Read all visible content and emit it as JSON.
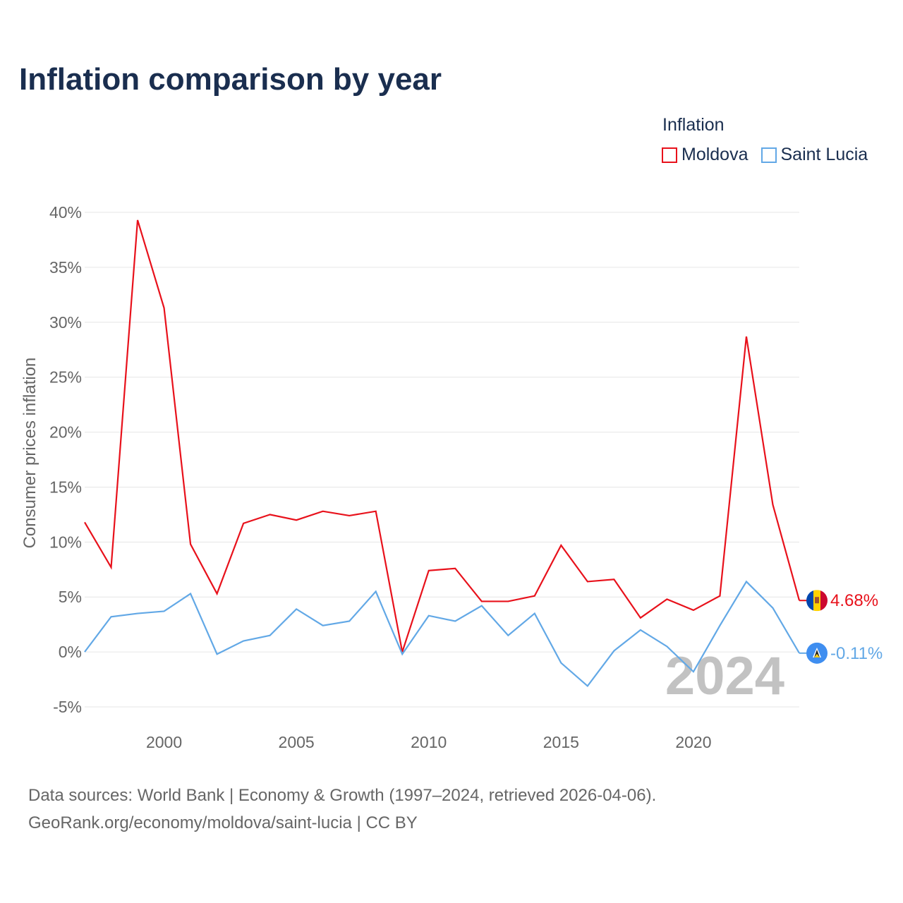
{
  "title": "Inflation comparison by year",
  "legend": {
    "title": "Inflation",
    "items": [
      {
        "label": "Moldova",
        "color": "#e8111b"
      },
      {
        "label": "Saint Lucia",
        "color": "#62a8e6"
      }
    ]
  },
  "source": {
    "line1": "Data sources: World Bank | Economy & Growth (1997–2024, retrieved 2026-04-06).",
    "line2": "GeoRank.org/economy/moldova/saint-lucia | CC BY"
  },
  "chart_data": {
    "type": "line",
    "title": "Inflation comparison by year",
    "xlabel": "",
    "ylabel": "Consumer prices inflation",
    "x": [
      1997,
      1998,
      1999,
      2000,
      2001,
      2002,
      2003,
      2004,
      2005,
      2006,
      2007,
      2008,
      2009,
      2010,
      2011,
      2012,
      2013,
      2014,
      2015,
      2016,
      2017,
      2018,
      2019,
      2020,
      2021,
      2022,
      2023,
      2024
    ],
    "xlim": [
      1997,
      2024
    ],
    "ylim": [
      -5,
      40
    ],
    "x_ticks": [
      "2000",
      "2005",
      "2010",
      "2015",
      "2020"
    ],
    "x_tick_values": [
      2000,
      2005,
      2010,
      2015,
      2020
    ],
    "y_ticks": [
      "40%",
      "35%",
      "30%",
      "25%",
      "20%",
      "15%",
      "10%",
      "5%",
      "0%",
      "-5%"
    ],
    "y_tick_values": [
      40,
      35,
      30,
      25,
      20,
      15,
      10,
      5,
      0,
      -5
    ],
    "grid": true,
    "year_watermark": "2024",
    "series": [
      {
        "name": "Moldova",
        "color": "#e8111b",
        "end_label": "4.68%",
        "flag": "moldova-flag-icon",
        "values": [
          11.8,
          7.7,
          39.3,
          31.3,
          9.8,
          5.3,
          11.7,
          12.5,
          12.0,
          12.8,
          12.4,
          12.8,
          0.0,
          7.4,
          7.6,
          4.6,
          4.6,
          5.1,
          9.7,
          6.4,
          6.6,
          3.1,
          4.8,
          3.8,
          5.1,
          28.7,
          13.4,
          4.68
        ]
      },
      {
        "name": "Saint Lucia",
        "color": "#62a8e6",
        "end_label": "-0.11%",
        "flag": "saint-lucia-flag-icon",
        "values": [
          0.0,
          3.2,
          3.5,
          3.7,
          5.3,
          -0.2,
          1.0,
          1.5,
          3.9,
          2.4,
          2.8,
          5.5,
          -0.2,
          3.3,
          2.8,
          4.2,
          1.5,
          3.5,
          -1.0,
          -3.1,
          0.1,
          2.0,
          0.5,
          -1.8,
          2.4,
          6.4,
          4.0,
          -0.11
        ]
      }
    ]
  }
}
